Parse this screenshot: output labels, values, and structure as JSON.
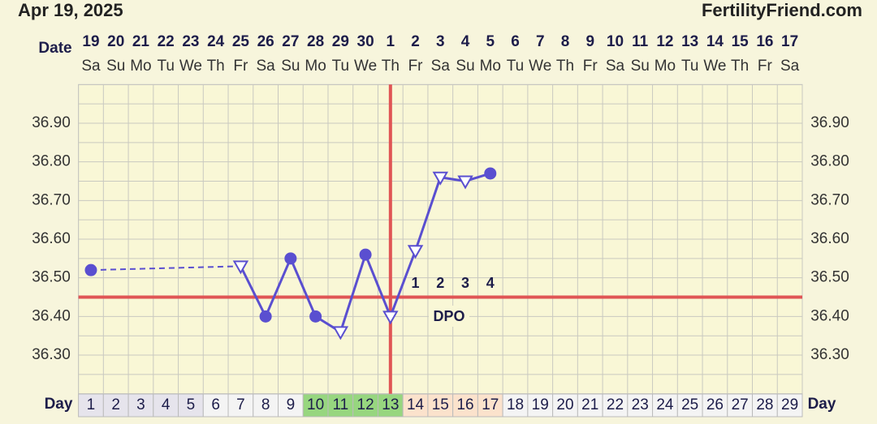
{
  "header": {
    "date": "Apr 19, 2025",
    "site": "FertilityFriend.com"
  },
  "chart_data": {
    "type": "line",
    "date_label": "Date",
    "day_label": "Day",
    "dates": [
      19,
      20,
      21,
      22,
      23,
      24,
      25,
      26,
      27,
      28,
      29,
      30,
      1,
      2,
      3,
      4,
      5,
      6,
      7,
      8,
      9,
      10,
      11,
      12,
      13,
      14,
      15,
      16,
      17
    ],
    "weekdays": [
      "Sa",
      "Su",
      "Mo",
      "Tu",
      "We",
      "Th",
      "Fr",
      "Sa",
      "Su",
      "Mo",
      "Tu",
      "We",
      "Th",
      "Fr",
      "Sa",
      "Su",
      "Mo",
      "Tu",
      "We",
      "Th",
      "Fr",
      "Sa",
      "Su",
      "Mo",
      "Tu",
      "We",
      "Th",
      "Fr",
      "Sa"
    ],
    "x": [
      1,
      2,
      3,
      4,
      5,
      6,
      7,
      8,
      9,
      10,
      11,
      12,
      13,
      14,
      15,
      16,
      17,
      18,
      19,
      20,
      21,
      22,
      23,
      24,
      25,
      26,
      27,
      28,
      29
    ],
    "values": [
      36.52,
      null,
      null,
      null,
      null,
      null,
      36.53,
      36.4,
      36.55,
      36.4,
      36.36,
      36.56,
      36.4,
      36.57,
      36.76,
      36.75,
      36.77,
      null,
      null,
      null,
      null,
      null,
      null,
      null,
      null,
      null,
      null,
      null,
      null
    ],
    "markers": [
      "circle",
      null,
      null,
      null,
      null,
      null,
      "triangle",
      "circle",
      "circle",
      "circle",
      "triangle",
      "circle",
      "triangle",
      "triangle",
      "triangle",
      "triangle",
      "circle",
      null,
      null,
      null,
      null,
      null,
      null,
      null,
      null,
      null,
      null,
      null,
      null
    ],
    "color": "#5a4fd0",
    "day_colors": [
      "#e6e4ec",
      "#e6e4ec",
      "#e6e4ec",
      "#e6e4ec",
      "#e6e4ec",
      "#f4f4f4",
      "#f4f4f4",
      "#f4f4f4",
      "#f4f4f4",
      "#97d67f",
      "#97d67f",
      "#97d67f",
      "#97d67f",
      "#fbe2cc",
      "#fbe2cc",
      "#fbe2cc",
      "#fbe2cc",
      "#f4f4f4",
      "#f4f4f4",
      "#f4f4f4",
      "#f4f4f4",
      "#f4f4f4",
      "#f4f4f4",
      "#f4f4f4",
      "#f4f4f4",
      "#f4f4f4",
      "#f4f4f4",
      "#f4f4f4",
      "#f4f4f4"
    ],
    "coverline": 36.45,
    "ovulation_day": 13,
    "dpo_labels": [
      1,
      2,
      3,
      4
    ],
    "dpo_text": "DPO",
    "line_color_ref": "#e05555",
    "ylim": [
      36.2,
      37.0
    ],
    "yticks": [
      {
        "value": 36.3,
        "label": "36.30"
      },
      {
        "value": 36.4,
        "label": "36.40"
      },
      {
        "value": 36.5,
        "label": "36.50"
      },
      {
        "value": 36.6,
        "label": "36.60"
      },
      {
        "value": 36.7,
        "label": "36.70"
      },
      {
        "value": 36.8,
        "label": "36.80"
      },
      {
        "value": 36.9,
        "label": "36.90"
      }
    ],
    "grid": true
  }
}
